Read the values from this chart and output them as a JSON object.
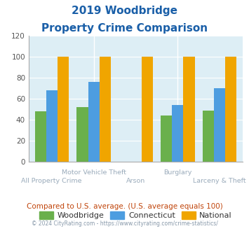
{
  "title_line1": "2019 Woodbridge",
  "title_line2": "Property Crime Comparison",
  "categories": [
    "All Property Crime",
    "Motor Vehicle Theft",
    "Arson",
    "Burglary",
    "Larceny & Theft"
  ],
  "woodbridge": [
    48,
    52,
    0,
    44,
    49
  ],
  "connecticut": [
    68,
    76,
    0,
    54,
    70
  ],
  "national": [
    100,
    100,
    100,
    100,
    100
  ],
  "colors": {
    "woodbridge": "#6ab04c",
    "connecticut": "#4d9de0",
    "national": "#f0a500"
  },
  "ylim": [
    0,
    120
  ],
  "yticks": [
    0,
    20,
    40,
    60,
    80,
    100,
    120
  ],
  "background_color": "#ddeef5",
  "title_color": "#1a5fa8",
  "xlabel_color": "#9aabbb",
  "footer_text": "© 2024 CityRating.com - https://www.cityrating.com/crime-statistics/",
  "note_text": "Compared to U.S. average. (U.S. average equals 100)",
  "note_color": "#c0440a",
  "footer_color": "#8899aa",
  "legend_label_color": "#333333"
}
